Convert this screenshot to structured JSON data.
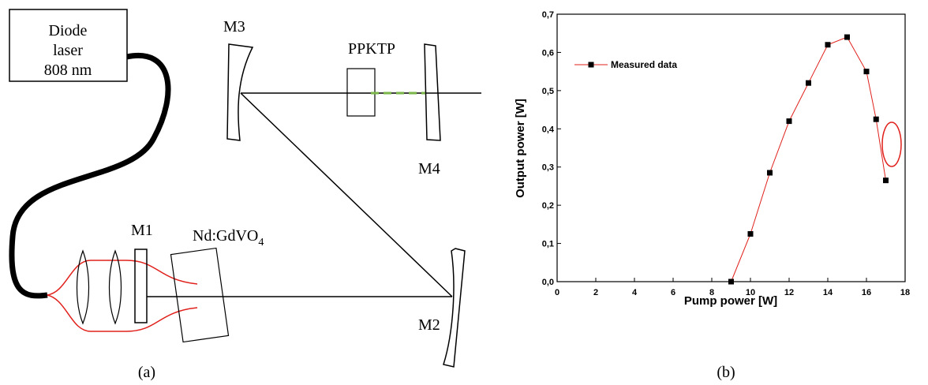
{
  "diagram": {
    "laser": {
      "lines": [
        "Diode",
        "laser",
        "808 nm"
      ]
    },
    "mirrors": [
      "M1",
      "M2",
      "M3",
      "M4"
    ],
    "ppktp": "PPKTP",
    "crystal": {
      "label": "Nd:GdVO",
      "sub": "4"
    },
    "caption": "(a)"
  },
  "chart_data": {
    "type": "line",
    "caption": "(b)",
    "x_label": "Pump power [W]",
    "y_label": "Output power [W]",
    "x": [
      9,
      10,
      11,
      12,
      13,
      14,
      15,
      16,
      16.5,
      17
    ],
    "series": [
      {
        "name": "Measured data",
        "color": "#e0201b",
        "values": [
          0,
          0.125,
          0.285,
          0.42,
          0.52,
          0.62,
          0.64,
          0.55,
          0.425,
          0.265
        ]
      }
    ],
    "xlim": [
      0,
      18
    ],
    "xticks": [
      0,
      2,
      4,
      6,
      8,
      10,
      12,
      14,
      16,
      18
    ],
    "ylim": [
      0,
      0.7
    ],
    "yticks": [
      {
        "value": 0,
        "label": "0,0"
      },
      {
        "value": 0.1,
        "label": "0,1"
      },
      {
        "value": 0.2,
        "label": "0,2"
      },
      {
        "value": 0.3,
        "label": "0,3"
      },
      {
        "value": 0.4,
        "label": "0,4"
      },
      {
        "value": 0.5,
        "label": "0,5"
      },
      {
        "value": 0.6,
        "label": "0,6"
      },
      {
        "value": 0.7,
        "label": "0,7"
      }
    ],
    "legend": "upper left"
  }
}
